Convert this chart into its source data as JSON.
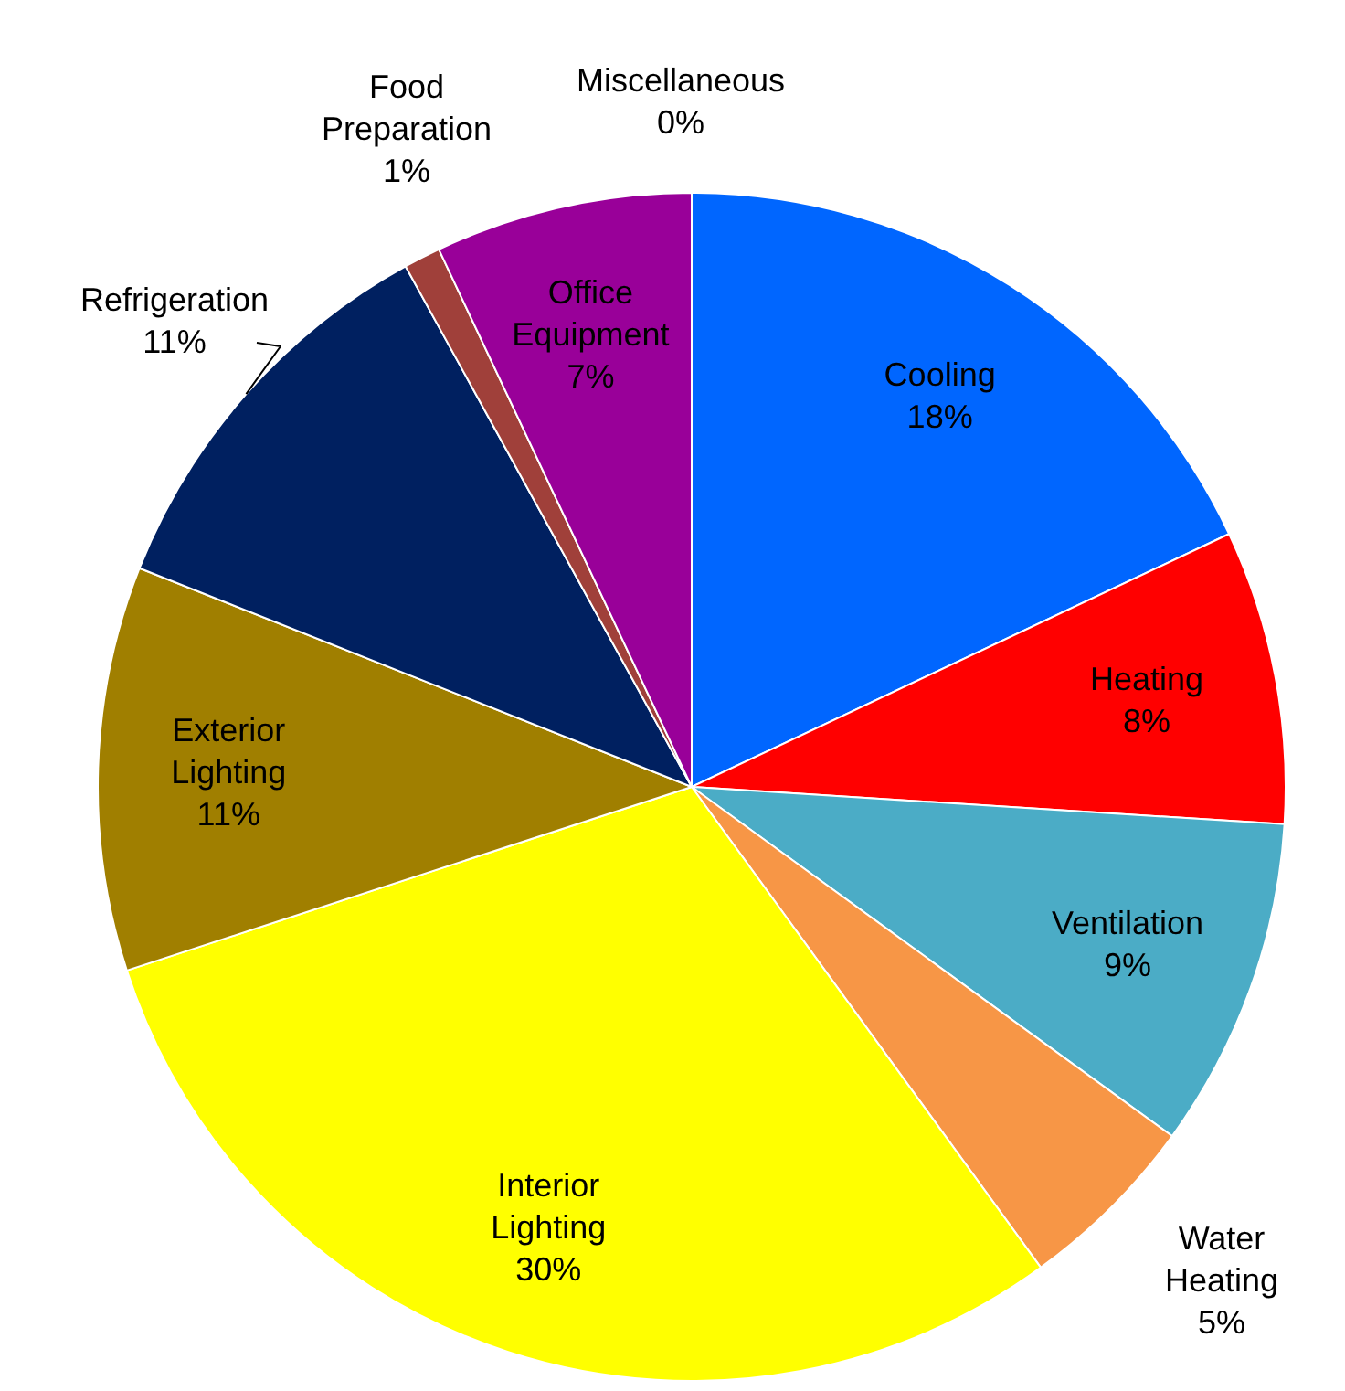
{
  "chart_data": {
    "type": "pie",
    "categories": [
      "Cooling",
      "Heating",
      "Ventilation",
      "Water Heating",
      "Interior Lighting",
      "Exterior Lighting",
      "Refrigeration",
      "Food Preparation",
      "Office Equipment",
      "Miscellaneous"
    ],
    "values": [
      18,
      8,
      9,
      5,
      30,
      11,
      11,
      1,
      7,
      0
    ],
    "colors": [
      "#0066ff",
      "#ff0000",
      "#4bacc6",
      "#f79646",
      "#ffff00",
      "#a07f00",
      "#002060",
      "#a0403a",
      "#990099",
      "#ff66cc"
    ],
    "value_labels": [
      "18%",
      "8%",
      "9%",
      "5%",
      "30%",
      "11%",
      "11%",
      "1%",
      "7%",
      "0%"
    ]
  }
}
